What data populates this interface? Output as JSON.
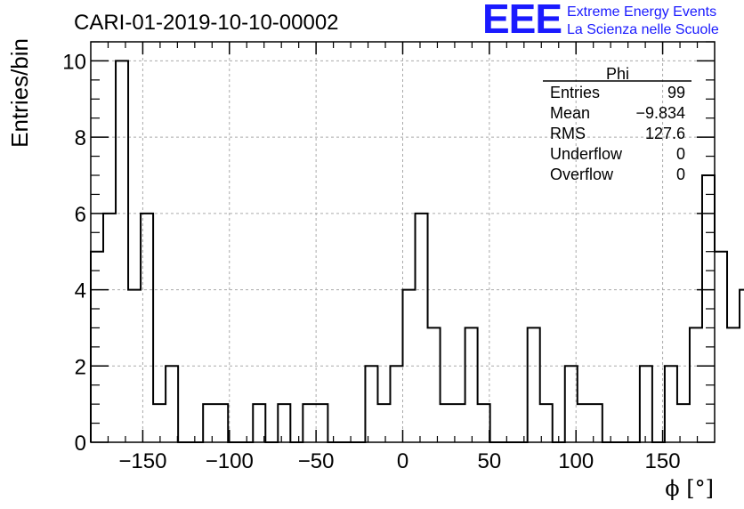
{
  "logo": {
    "mark": "EEE",
    "line1": "Extreme Energy Events",
    "line2": "La Scienza nelle Scuole",
    "color": "#1a1aff"
  },
  "stats": {
    "title": "Phi",
    "rows": [
      {
        "label": "Entries",
        "value": "99"
      },
      {
        "label": "Mean",
        "value": "−9.834"
      },
      {
        "label": "RMS",
        "value": "127.6"
      },
      {
        "label": "Underflow",
        "value": "0"
      },
      {
        "label": "Overflow",
        "value": "0"
      }
    ]
  },
  "chart_data": {
    "type": "bar",
    "title": "CARI-01-2019-10-10-00002",
    "xlabel": "ϕ [°]",
    "ylabel": "Entries/bin",
    "xlim": [
      -180,
      180
    ],
    "ylim": [
      0,
      10.5
    ],
    "bin_width": 7.2,
    "x_ticks": [
      -150,
      -100,
      -50,
      0,
      50,
      100,
      150
    ],
    "x_tick_labels": [
      "−150",
      "−100",
      "−50",
      "0",
      "50",
      "100",
      "150"
    ],
    "y_ticks": [
      0,
      2,
      4,
      6,
      8,
      10
    ],
    "y_tick_labels": [
      "0",
      "2",
      "4",
      "6",
      "8",
      "10"
    ],
    "grid": true,
    "values": [
      5,
      6,
      10,
      4,
      6,
      1,
      2,
      0,
      0,
      1,
      1,
      0,
      0,
      1,
      0,
      1,
      0,
      1,
      1,
      0,
      0,
      0,
      2,
      1,
      2,
      4,
      6,
      3,
      1,
      1,
      3,
      1,
      0,
      0,
      0,
      3,
      1,
      0,
      2,
      1,
      1,
      0,
      0,
      0,
      2,
      0,
      2,
      1,
      3,
      7,
      5,
      3,
      4
    ]
  }
}
